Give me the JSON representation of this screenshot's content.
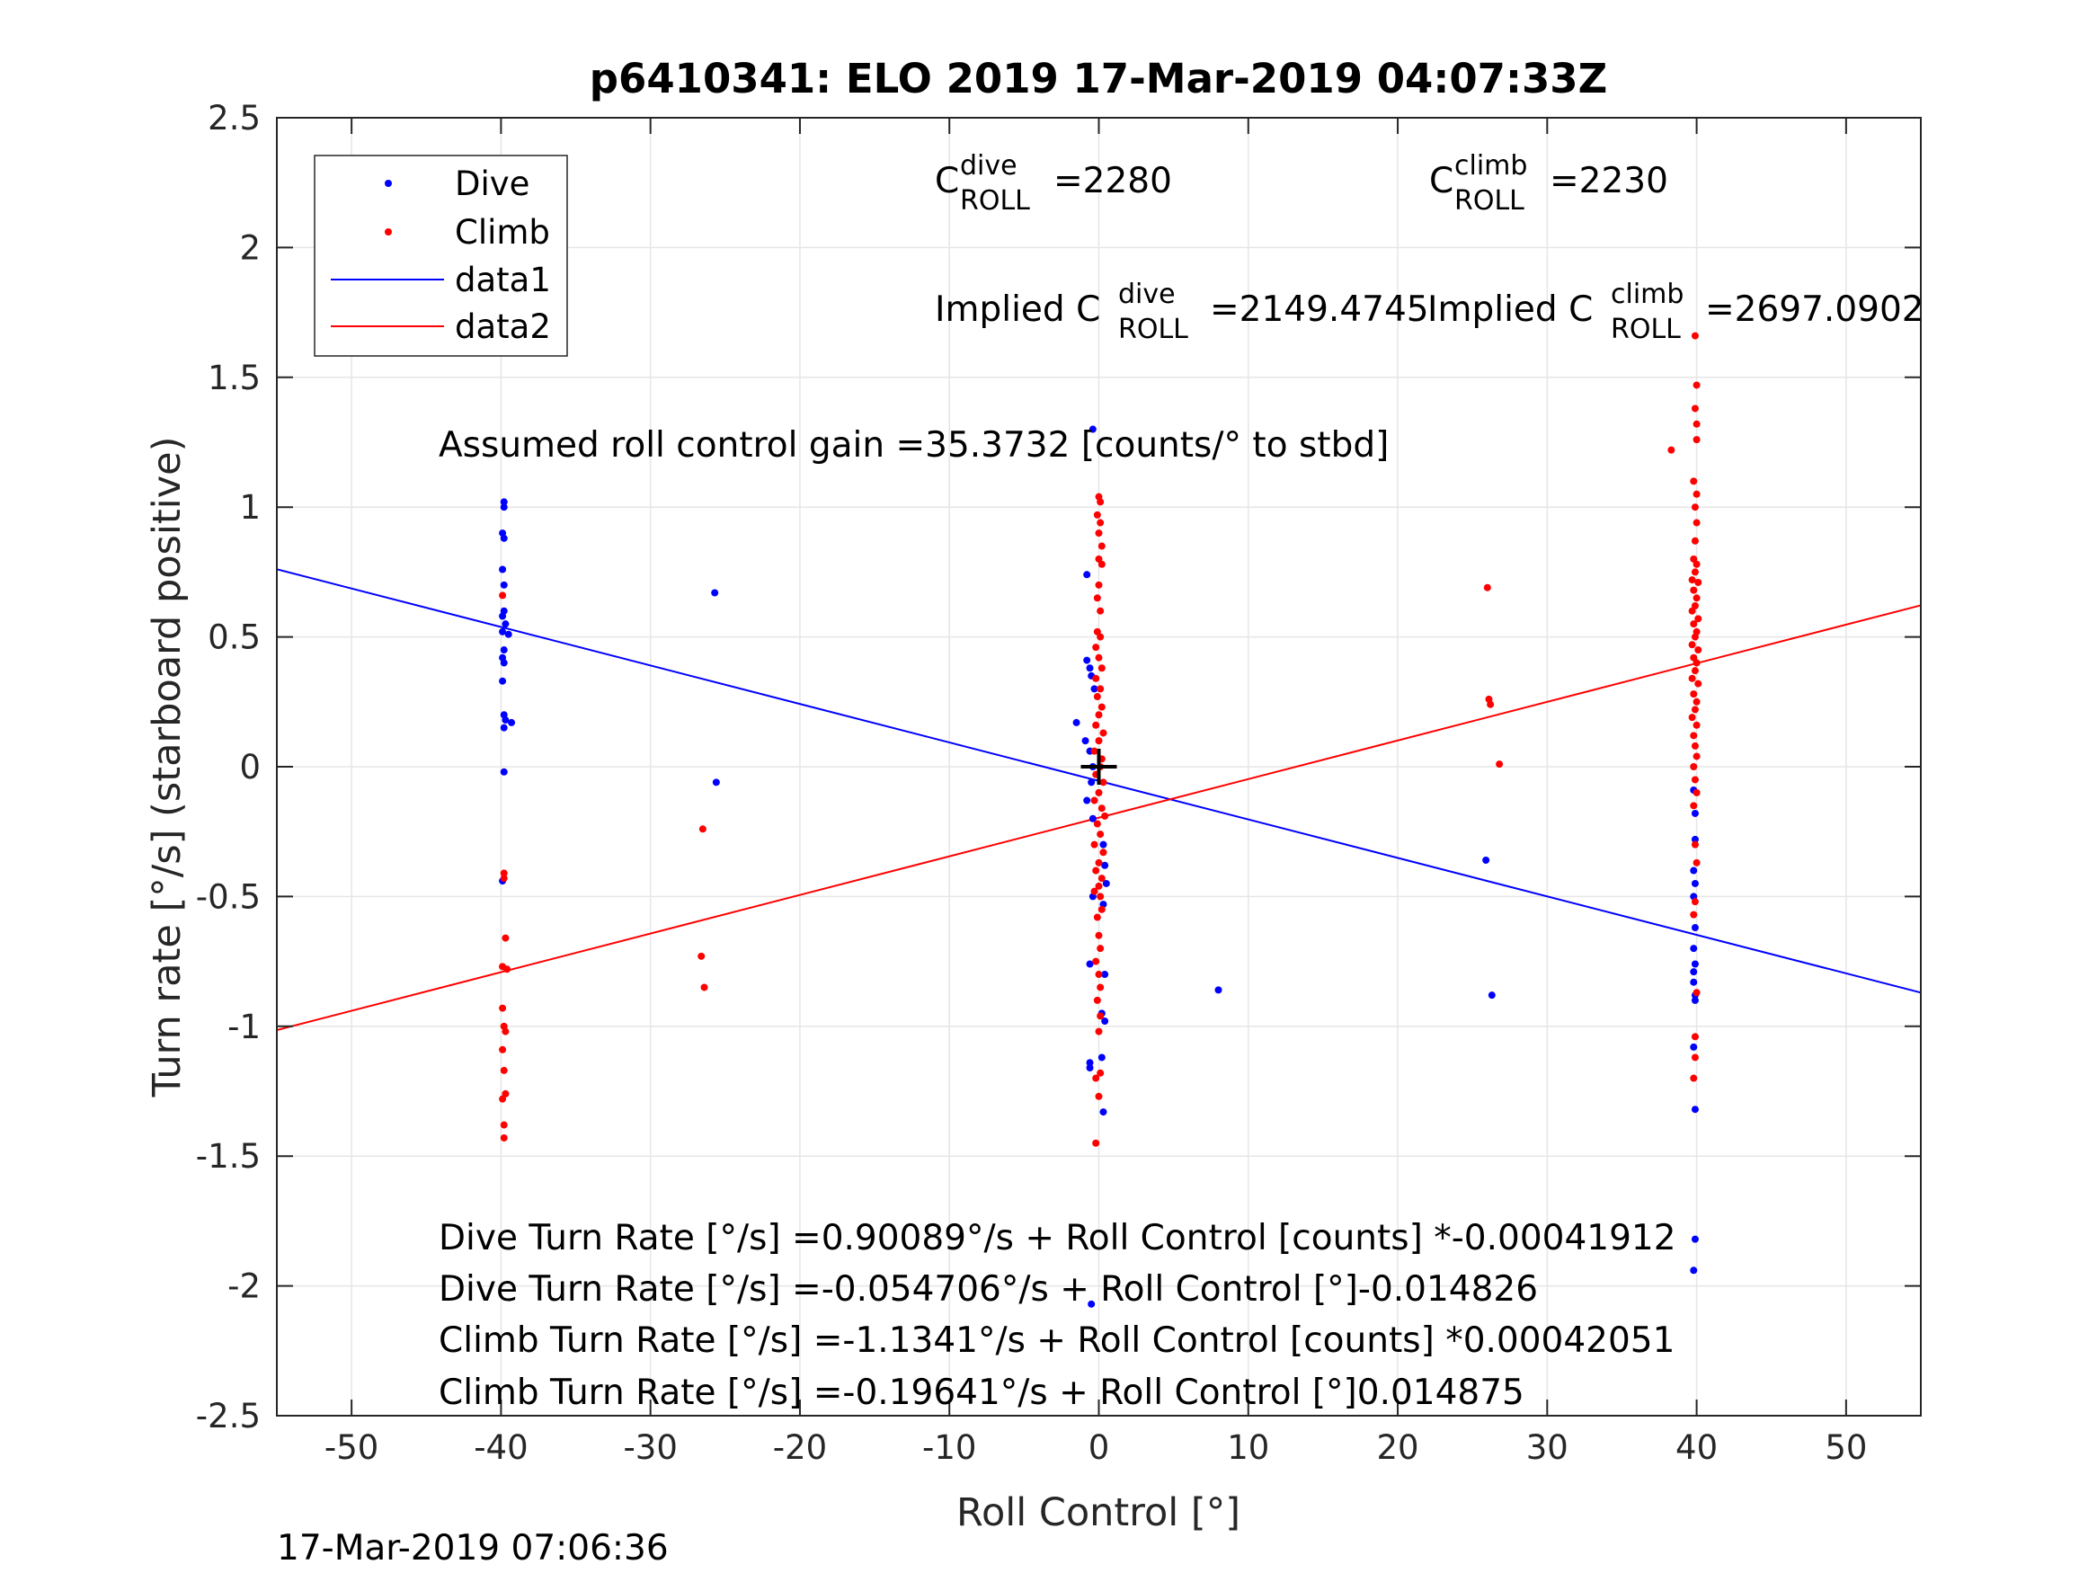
{
  "chart_data": {
    "type": "scatter",
    "title": "p6410341: ELO 2019 17-Mar-2019 04:07:33Z",
    "xlabel": "Roll Control [°]",
    "ylabel": "Turn rate [°/s] (starboard positive)",
    "xlim": [
      -55,
      55
    ],
    "ylim": [
      -2.5,
      2.5
    ],
    "grid": true,
    "legend_position": "top-left",
    "xticks": [
      "-50",
      "-40",
      "-30",
      "-20",
      "-10",
      "0",
      "10",
      "20",
      "30",
      "40",
      "50"
    ],
    "yticks": [
      "2.5",
      "2",
      "1.5",
      "1",
      "0.5",
      "0",
      "-0.5",
      "-1",
      "-1.5",
      "-2",
      "-2.5"
    ],
    "colors": {
      "dive": "#0000ff",
      "climb": "#ff0000",
      "axis": "#262626",
      "grid": "#e6e6e6"
    },
    "series": [
      {
        "name": "Dive",
        "kind": "points",
        "color": "#0000ff",
        "points": [
          [
            -39.8,
            1.02
          ],
          [
            -39.8,
            1.0
          ],
          [
            -39.9,
            0.9
          ],
          [
            -39.8,
            0.88
          ],
          [
            -39.9,
            0.76
          ],
          [
            -39.8,
            0.7
          ],
          [
            -39.8,
            0.6
          ],
          [
            -39.9,
            0.58
          ],
          [
            -39.7,
            0.55
          ],
          [
            -39.9,
            0.52
          ],
          [
            -39.5,
            0.51
          ],
          [
            -39.8,
            0.45
          ],
          [
            -39.9,
            0.42
          ],
          [
            -39.8,
            0.4
          ],
          [
            -39.9,
            0.33
          ],
          [
            -39.8,
            0.2
          ],
          [
            -39.7,
            0.18
          ],
          [
            -39.8,
            0.15
          ],
          [
            -39.3,
            0.17
          ],
          [
            -39.8,
            -0.02
          ],
          [
            -39.9,
            -0.44
          ],
          [
            -25.7,
            0.67
          ],
          [
            -25.6,
            -0.06
          ],
          [
            -0.4,
            1.3
          ],
          [
            -0.8,
            0.74
          ],
          [
            -0.8,
            0.41
          ],
          [
            -0.6,
            0.38
          ],
          [
            -0.5,
            0.35
          ],
          [
            -0.3,
            0.3
          ],
          [
            -1.5,
            0.17
          ],
          [
            -0.9,
            0.1
          ],
          [
            -0.6,
            0.06
          ],
          [
            -0.4,
            0.0
          ],
          [
            -0.5,
            -0.06
          ],
          [
            -0.8,
            -0.13
          ],
          [
            -0.4,
            -0.2
          ],
          [
            0.3,
            -0.3
          ],
          [
            0.4,
            -0.38
          ],
          [
            0.5,
            -0.45
          ],
          [
            -0.4,
            -0.5
          ],
          [
            0.3,
            -0.53
          ],
          [
            -0.6,
            -0.76
          ],
          [
            0.4,
            -0.8
          ],
          [
            0.2,
            -0.95
          ],
          [
            0.4,
            -0.98
          ],
          [
            -0.6,
            -1.14
          ],
          [
            -0.6,
            -1.16
          ],
          [
            0.2,
            -1.12
          ],
          [
            0.3,
            -1.33
          ],
          [
            -0.5,
            -2.07
          ],
          [
            8.0,
            -0.86
          ],
          [
            25.9,
            -0.36
          ],
          [
            26.3,
            -0.88
          ],
          [
            39.8,
            -0.09
          ],
          [
            39.9,
            -0.18
          ],
          [
            39.9,
            -0.28
          ],
          [
            39.8,
            -0.4
          ],
          [
            39.9,
            -0.45
          ],
          [
            39.8,
            -0.5
          ],
          [
            39.9,
            -0.62
          ],
          [
            39.8,
            -0.7
          ],
          [
            39.9,
            -0.76
          ],
          [
            39.8,
            -0.79
          ],
          [
            39.8,
            -0.83
          ],
          [
            39.9,
            -0.88
          ],
          [
            39.9,
            -0.9
          ],
          [
            39.8,
            -1.08
          ],
          [
            39.9,
            -1.32
          ],
          [
            39.9,
            -1.82
          ],
          [
            39.8,
            -1.94
          ]
        ]
      },
      {
        "name": "Climb",
        "kind": "points",
        "color": "#ff0000",
        "points": [
          [
            -39.9,
            0.66
          ],
          [
            -39.8,
            -0.41
          ],
          [
            -39.8,
            -0.43
          ],
          [
            -39.7,
            -0.66
          ],
          [
            -39.9,
            -0.77
          ],
          [
            -39.6,
            -0.78
          ],
          [
            -39.9,
            -0.93
          ],
          [
            -39.8,
            -1.0
          ],
          [
            -39.7,
            -1.02
          ],
          [
            -39.9,
            -1.09
          ],
          [
            -39.8,
            -1.17
          ],
          [
            -39.9,
            -1.28
          ],
          [
            -39.7,
            -1.26
          ],
          [
            -39.8,
            -1.38
          ],
          [
            -39.8,
            -1.43
          ],
          [
            -26.5,
            -0.24
          ],
          [
            -26.6,
            -0.73
          ],
          [
            -26.4,
            -0.85
          ],
          [
            0.0,
            1.04
          ],
          [
            0.1,
            1.02
          ],
          [
            -0.1,
            0.97
          ],
          [
            0.1,
            0.94
          ],
          [
            0.0,
            0.9
          ],
          [
            0.2,
            0.85
          ],
          [
            0.0,
            0.8
          ],
          [
            0.2,
            0.78
          ],
          [
            0.0,
            0.7
          ],
          [
            -0.1,
            0.65
          ],
          [
            0.1,
            0.6
          ],
          [
            -0.1,
            0.52
          ],
          [
            0.1,
            0.5
          ],
          [
            -0.2,
            0.46
          ],
          [
            0.0,
            0.42
          ],
          [
            0.2,
            0.38
          ],
          [
            -0.2,
            0.34
          ],
          [
            0.1,
            0.3
          ],
          [
            -0.1,
            0.27
          ],
          [
            0.2,
            0.23
          ],
          [
            0.0,
            0.2
          ],
          [
            -0.2,
            0.16
          ],
          [
            0.3,
            0.13
          ],
          [
            0.0,
            0.1
          ],
          [
            -0.3,
            0.06
          ],
          [
            0.2,
            0.03
          ],
          [
            0.1,
            0.0
          ],
          [
            -0.2,
            -0.03
          ],
          [
            0.3,
            -0.06
          ],
          [
            0.0,
            -0.1
          ],
          [
            -0.3,
            -0.13
          ],
          [
            0.2,
            -0.16
          ],
          [
            0.4,
            -0.19
          ],
          [
            -0.1,
            -0.22
          ],
          [
            0.1,
            -0.26
          ],
          [
            -0.3,
            -0.3
          ],
          [
            0.3,
            -0.33
          ],
          [
            0.0,
            -0.37
          ],
          [
            -0.2,
            -0.4
          ],
          [
            0.2,
            -0.43
          ],
          [
            0.0,
            -0.46
          ],
          [
            -0.3,
            -0.48
          ],
          [
            0.1,
            -0.5
          ],
          [
            0.2,
            -0.55
          ],
          [
            -0.1,
            -0.58
          ],
          [
            0.0,
            -0.65
          ],
          [
            0.1,
            -0.7
          ],
          [
            -0.2,
            -0.75
          ],
          [
            0.0,
            -0.8
          ],
          [
            0.1,
            -0.85
          ],
          [
            -0.1,
            -0.9
          ],
          [
            0.1,
            -0.96
          ],
          [
            0.0,
            -1.02
          ],
          [
            0.1,
            -1.18
          ],
          [
            -0.2,
            -1.2
          ],
          [
            0.0,
            -1.27
          ],
          [
            -0.2,
            -1.45
          ],
          [
            26.0,
            0.69
          ],
          [
            26.1,
            0.26
          ],
          [
            26.2,
            0.24
          ],
          [
            26.8,
            0.01
          ],
          [
            39.9,
            1.66
          ],
          [
            40.0,
            1.47
          ],
          [
            39.9,
            1.38
          ],
          [
            40.0,
            1.32
          ],
          [
            40.0,
            1.26
          ],
          [
            38.3,
            1.22
          ],
          [
            39.8,
            1.1
          ],
          [
            40.0,
            1.05
          ],
          [
            39.9,
            1.0
          ],
          [
            40.0,
            0.94
          ],
          [
            39.9,
            0.87
          ],
          [
            39.8,
            0.8
          ],
          [
            40.0,
            0.78
          ],
          [
            39.9,
            0.75
          ],
          [
            39.7,
            0.72
          ],
          [
            40.1,
            0.71
          ],
          [
            39.8,
            0.68
          ],
          [
            40.0,
            0.65
          ],
          [
            39.9,
            0.62
          ],
          [
            39.7,
            0.6
          ],
          [
            40.1,
            0.57
          ],
          [
            39.8,
            0.55
          ],
          [
            40.0,
            0.52
          ],
          [
            39.9,
            0.5
          ],
          [
            39.7,
            0.47
          ],
          [
            40.1,
            0.45
          ],
          [
            39.8,
            0.42
          ],
          [
            40.0,
            0.4
          ],
          [
            39.9,
            0.37
          ],
          [
            39.7,
            0.34
          ],
          [
            40.1,
            0.32
          ],
          [
            39.8,
            0.28
          ],
          [
            40.0,
            0.25
          ],
          [
            39.9,
            0.22
          ],
          [
            39.7,
            0.19
          ],
          [
            40.0,
            0.16
          ],
          [
            39.8,
            0.12
          ],
          [
            39.9,
            0.08
          ],
          [
            40.0,
            0.04
          ],
          [
            39.8,
            0.0
          ],
          [
            39.9,
            -0.05
          ],
          [
            40.0,
            -0.1
          ],
          [
            39.8,
            -0.15
          ],
          [
            39.9,
            -0.3
          ],
          [
            40.0,
            -0.37
          ],
          [
            39.9,
            -0.52
          ],
          [
            39.8,
            -0.57
          ],
          [
            40.0,
            -0.87
          ],
          [
            39.9,
            -1.04
          ],
          [
            39.9,
            -1.12
          ],
          [
            39.8,
            -1.2
          ]
        ]
      },
      {
        "name": "data1",
        "kind": "line",
        "color": "#0000ff",
        "x": [
          -55,
          55
        ],
        "y": [
          0.7607,
          -0.8702
        ]
      },
      {
        "name": "data2",
        "kind": "line",
        "color": "#ff0000",
        "x": [
          -55,
          55
        ],
        "y": [
          -1.0145,
          0.6217
        ]
      }
    ],
    "marker": {
      "x": 0,
      "y": 0,
      "symbol": "+",
      "color": "#000000"
    },
    "legend": [
      "Dive",
      "Climb",
      "data1",
      "data2"
    ],
    "annotations": {
      "c_dive": {
        "base": "C",
        "sup": "dive",
        "sub": "ROLL",
        "value": "=2280"
      },
      "c_climb": {
        "base": "C",
        "sup": "climb",
        "sub": "ROLL",
        "value": "=2230"
      },
      "implied_dive": {
        "prefix": "Implied C",
        "sup": "dive",
        "sub": "ROLL",
        "value": "=2149.4745"
      },
      "implied_climb": {
        "prefix": "Implied C",
        "sup": "climb",
        "sub": "ROLL",
        "value": "=2697.0902"
      },
      "gain": "Assumed roll control gain =35.3732 [counts/° to stbd]",
      "fits": [
        "Dive Turn Rate [°/s] =0.90089°/s + Roll Control [counts] *-0.00041912",
        "Dive Turn Rate [°/s] =-0.054706°/s + Roll Control [°]-0.014826",
        "Climb Turn Rate [°/s] =-1.1341°/s + Roll Control [counts] *0.00042051",
        "Climb Turn Rate [°/s] =-0.19641°/s + Roll Control [°]0.014875"
      ]
    },
    "footer_timestamp": "17-Mar-2019 07:06:36"
  }
}
